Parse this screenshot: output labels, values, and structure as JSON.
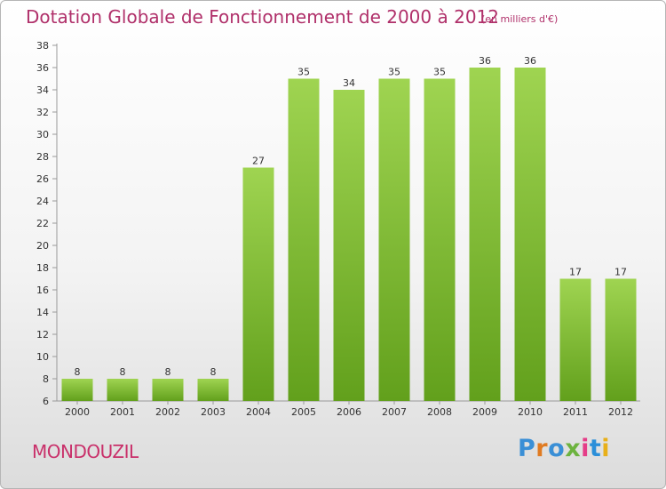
{
  "header": {
    "title": "Dotation Globale de Fonctionnement de 2000 à 2012",
    "subtitle": "(en milliers d'€)"
  },
  "footer": {
    "commune": "MONDOUZIL",
    "brand": "Proxiti"
  },
  "colors": {
    "accent": "#b0306a",
    "bar_top": "#9fd451",
    "bar_bottom": "#62a01c"
  },
  "chart_data": {
    "type": "bar",
    "title": "Dotation Globale de Fonctionnement de 2000 à 2012",
    "subtitle": "(en milliers d'€)",
    "categories": [
      "2000",
      "2001",
      "2002",
      "2003",
      "2004",
      "2005",
      "2006",
      "2007",
      "2008",
      "2009",
      "2010",
      "2011",
      "2012"
    ],
    "values": [
      8,
      8,
      8,
      8,
      27,
      35,
      34,
      35,
      35,
      36,
      36,
      17,
      17
    ],
    "ylim": [
      6,
      38
    ],
    "yticks": [
      6,
      8,
      10,
      12,
      14,
      16,
      18,
      20,
      22,
      24,
      26,
      28,
      30,
      32,
      34,
      36,
      38
    ],
    "grid": false,
    "data_labels": true
  }
}
